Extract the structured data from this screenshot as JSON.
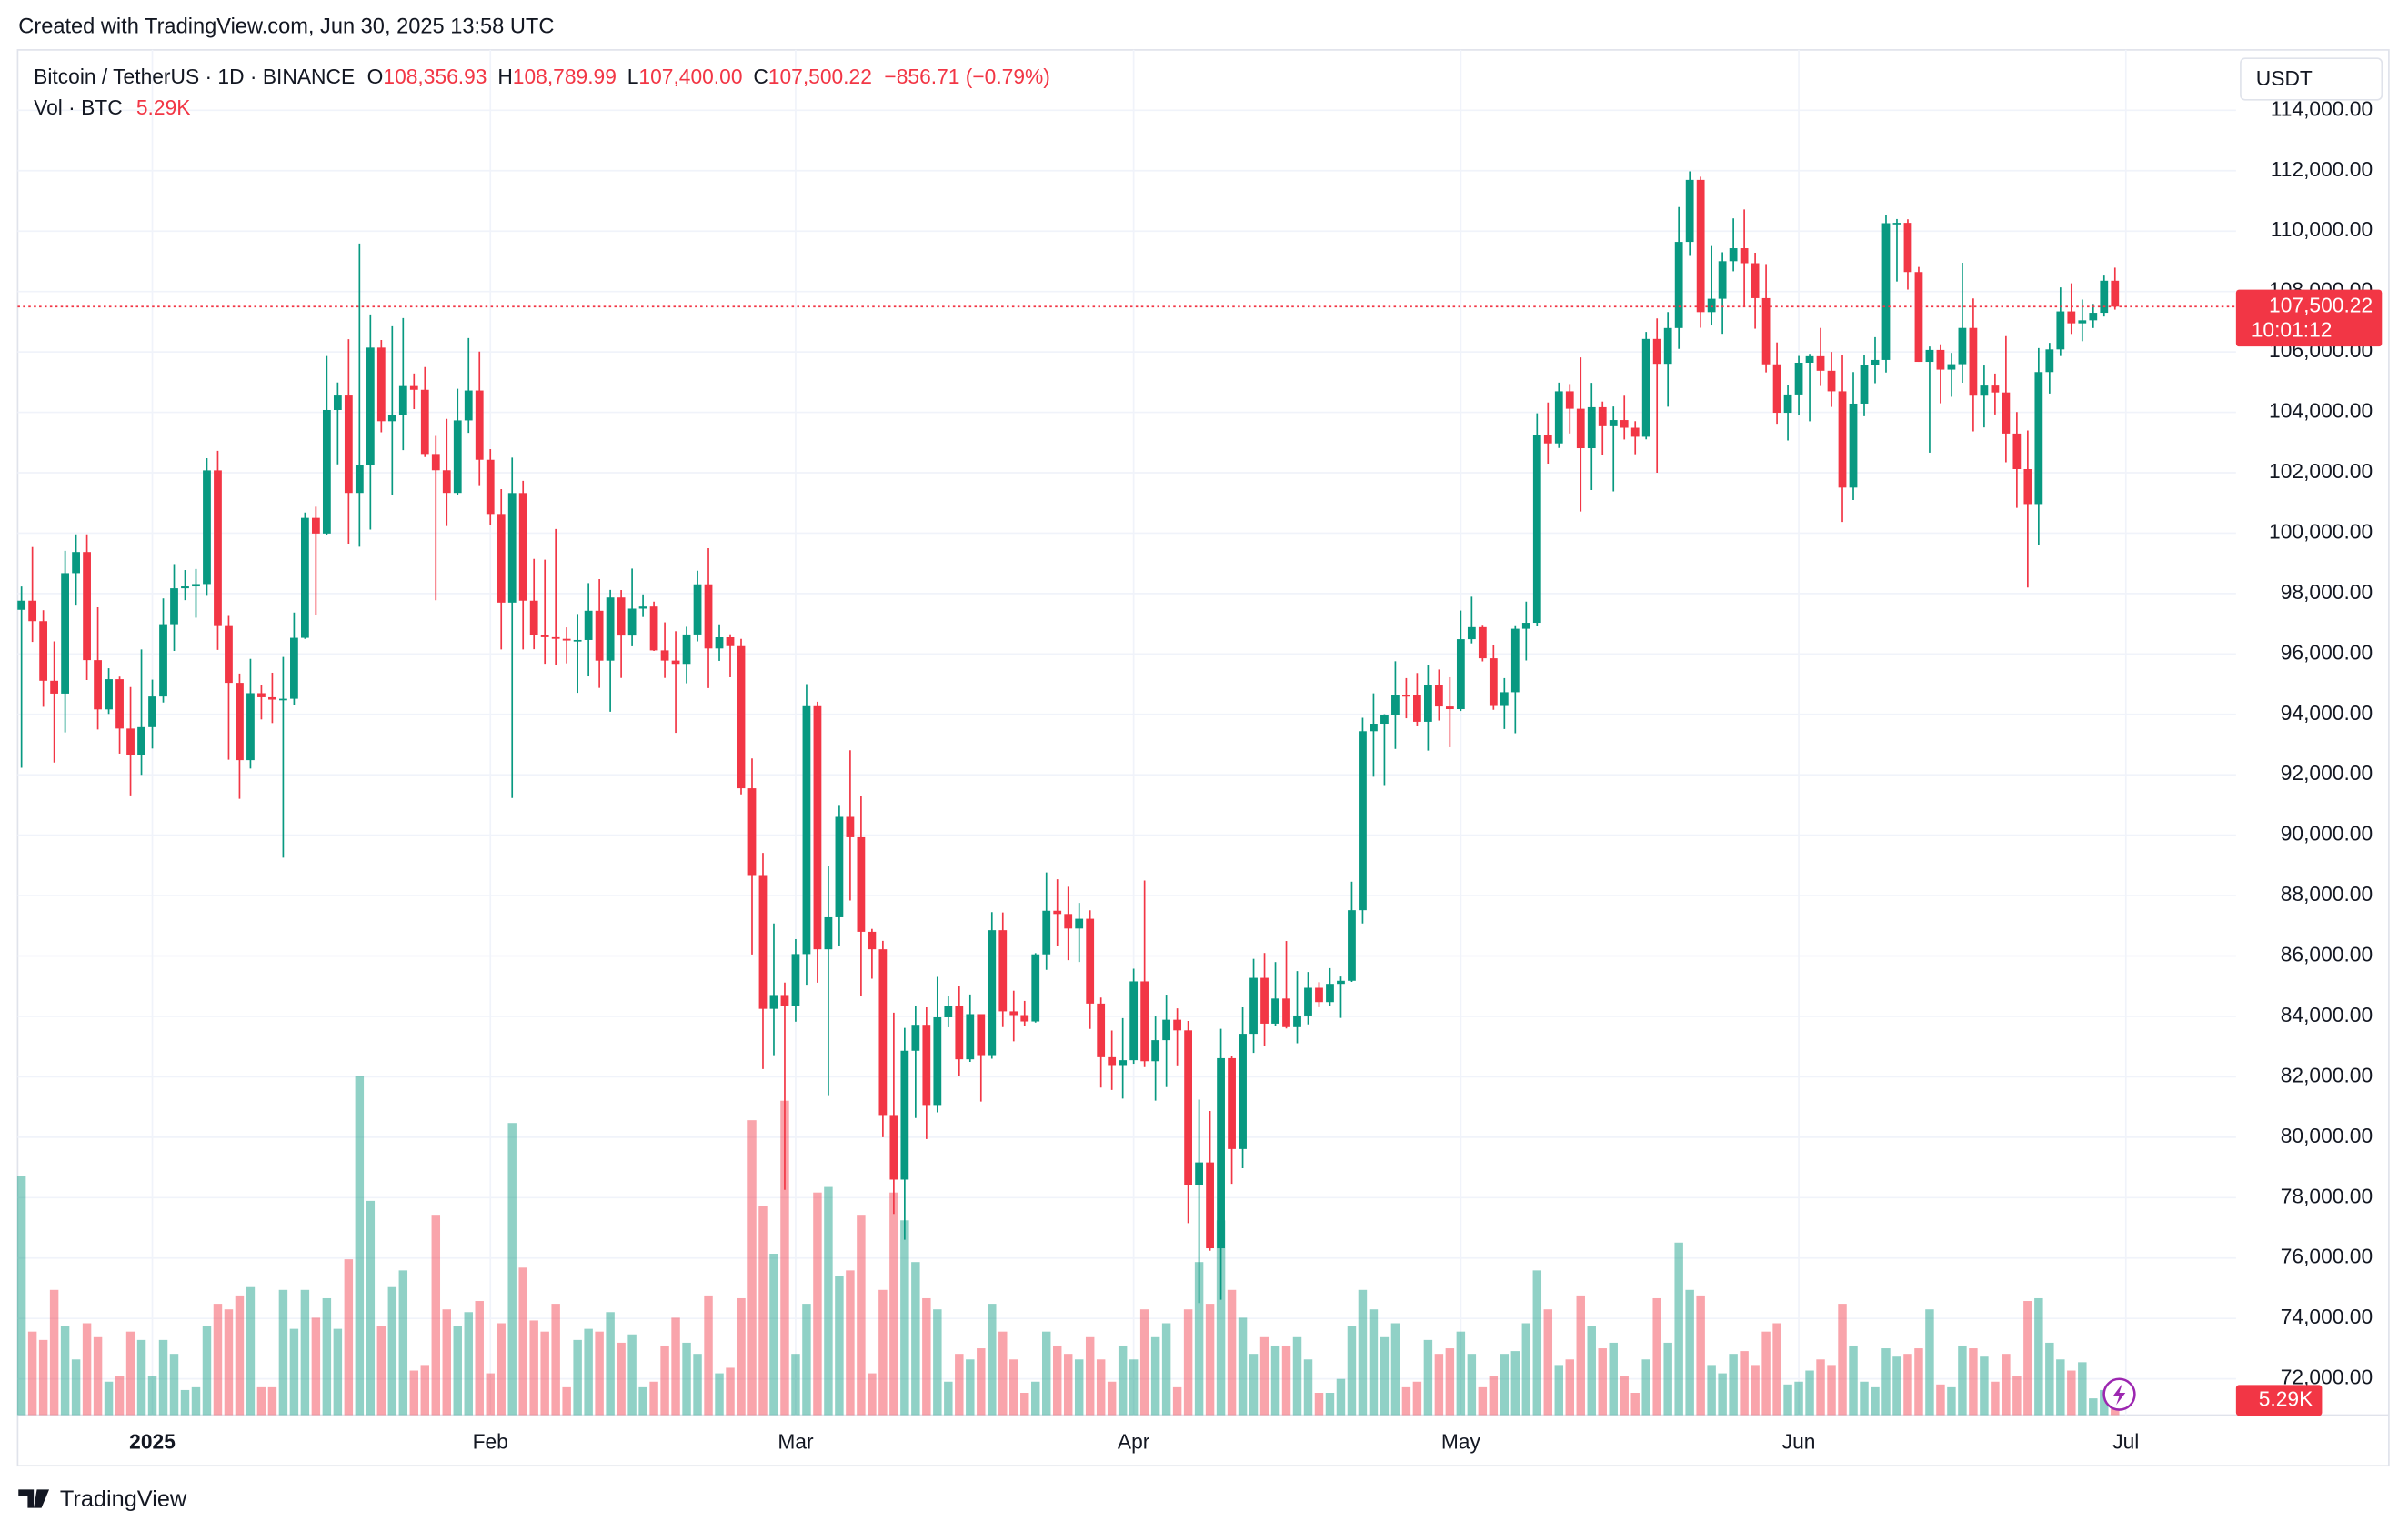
{
  "header": {
    "created": "Created with TradingView.com, Jun 30, 2025 13:58 UTC"
  },
  "chart_data": {
    "type": "candlestick",
    "title": "Bitcoin / TetherUS · 1D · BINANCE",
    "legend": {
      "open_label": "O",
      "open": "108,356.93",
      "high_label": "H",
      "high": "108,789.99",
      "low_label": "L",
      "low": "107,400.00",
      "close_label": "C",
      "close": "107,500.22",
      "change": "−856.71 (−0.79%)"
    },
    "categories": [
      null,
      null,
      null,
      null,
      null,
      null,
      null,
      null,
      null,
      null,
      null,
      null,
      "2025",
      null,
      null,
      null,
      null,
      null,
      null,
      null,
      null,
      null,
      null,
      null,
      null,
      null,
      null,
      null,
      null,
      null,
      null,
      null,
      null,
      null,
      null,
      null,
      null,
      null,
      null,
      null,
      null,
      null,
      null,
      "Feb",
      null,
      null,
      null,
      null,
      null,
      null,
      null,
      null,
      null,
      null,
      null,
      null,
      null,
      null,
      null,
      null,
      null,
      null,
      null,
      null,
      null,
      null,
      null,
      null,
      null,
      null,
      null,
      "Mar",
      null,
      null,
      null,
      null,
      null,
      null,
      null,
      null,
      null,
      null,
      null,
      null,
      null,
      null,
      null,
      null,
      null,
      null,
      null,
      null,
      null,
      null,
      null,
      null,
      null,
      null,
      null,
      null,
      null,
      null,
      "Apr",
      null,
      null,
      null,
      null,
      null,
      null,
      null,
      null,
      null,
      null,
      null,
      null,
      null,
      null,
      null,
      null,
      null,
      null,
      null,
      null,
      null,
      null,
      null,
      null,
      null,
      null,
      null,
      null,
      null,
      "May",
      null,
      null,
      null,
      null,
      null,
      null,
      null,
      null,
      null,
      null,
      null,
      null,
      null,
      null,
      null,
      null,
      null,
      null,
      null,
      null,
      null,
      null,
      null,
      null,
      null,
      null,
      null,
      null,
      null,
      null,
      "Jun",
      null,
      null,
      null,
      null,
      null,
      null,
      null,
      null,
      null,
      null,
      null,
      null,
      null,
      null,
      null,
      null,
      null,
      null,
      null,
      null,
      null,
      null,
      null,
      null,
      null,
      null,
      null,
      null,
      null,
      "Jul"
    ],
    "open": [
      97461,
      97763,
      97086,
      95112,
      94687,
      98676,
      99375,
      95795,
      94164,
      95164,
      93530,
      92643,
      93576,
      94591,
      96985,
      98174,
      98236,
      98314,
      102078,
      96923,
      95043,
      92484,
      94701,
      94566,
      94488,
      94516,
      96534,
      100505,
      99987,
      104077,
      104556,
      101331,
      102260,
      106143,
      103706,
      103910,
      104870,
      104746,
      102621,
      102082,
      101332,
      103733,
      104722,
      102429,
      100635,
      97700,
      101328,
      97763,
      96612,
      96554,
      96500,
      96444,
      96462,
      97430,
      95778,
      97869,
      96608,
      97500,
      97569,
      96118,
      95780,
      95671,
      96644,
      98305,
      96181,
      96551,
      96258,
      91552,
      88680,
      84250,
      84708,
      84349,
      86064,
      94270,
      86221,
      87281,
      90606,
      89931,
      86801,
      86222,
      80735,
      78596,
      82862,
      83722,
      81067,
      83969,
      84343,
      82579,
      84075,
      82718,
      86854,
      84167,
      84043,
      83832,
      86054,
      87498,
      87391,
      86909,
      87232,
      84424,
      82648,
      82389,
      82550,
      85159,
      82516,
      83213,
      83889,
      83538,
      78430,
      79164,
      76322,
      82616,
      79608,
      83424,
      85276,
      83760,
      84591,
      83643,
      84030,
      84947,
      84474,
      85077,
      85179,
      87516,
      93442,
      93691,
      93980,
      94638,
      94631,
      93754,
      94982,
      94261,
      94173,
      96489,
      96887,
      95856,
      94277,
      94733,
      96834,
      97032,
      103241,
      102971,
      104696,
      104118,
      102812,
      104169,
      103539,
      103744,
      103489,
      103191,
      106430,
      105606,
      106791,
      109643,
      111696,
      107318,
      107761,
      109004,
      109434,
      108938,
      107781,
      105589,
      103985,
      104591,
      105642,
      105857,
      105376,
      104696,
      101508,
      104288,
      105552,
      105734,
      110263,
      110274,
      108645,
      105671,
      106066,
      105414,
      105594,
      106794,
      104551,
      104886,
      104658,
      103297,
      102120,
      100963,
      105333,
      106084,
      107341,
      106947,
      107047,
      107296,
      108356.93,
      null
    ],
    "high": [
      98233,
      99540,
      97448,
      96416,
      99416,
      99960,
      99960,
      97544,
      95525,
      95250,
      94903,
      96150,
      95149,
      97839,
      98976,
      98778,
      98813,
      102482,
      102724,
      97258,
      95350,
      95837,
      94980,
      95378,
      95900,
      97371,
      100681,
      100875,
      105865,
      104988,
      106422,
      109588,
      107240,
      106394,
      106850,
      107120,
      105286,
      105500,
      103220,
      103783,
      104782,
      106457,
      106012,
      102783,
      101456,
      102500,
      101732,
      99149,
      99120,
      100137,
      96880,
      97323,
      98345,
      98478,
      98119,
      98116,
      98826,
      97972,
      97732,
      97046,
      96753,
      96899,
      98756,
      99500,
      96980,
      96650,
      96500,
      92540,
      89414,
      87078,
      85120,
      86558,
      95000,
      94416,
      88967,
      91000,
      92810,
      91283,
      86897,
      86500,
      84123,
      83617,
      84358,
      84300,
      85309,
      84672,
      85000,
      84725,
      84075,
      87453,
      87443,
      84850,
      84513,
      86094,
      88765,
      88542,
      88292,
      87756,
      87515,
      84624,
      83534,
      83943,
      85579,
      88500,
      83998,
      84720,
      84266,
      83850,
      81243,
      80867,
      83588,
      82700,
      84300,
      85905,
      86100,
      85799,
      86496,
      85500,
      85470,
      85132,
      85597,
      85320,
      88460,
      93888,
      94696,
      94005,
      95758,
      95199,
      95369,
      95630,
      95485,
      95228,
      97437,
      97895,
      96935,
      96304,
      95199,
      96920,
      97732,
      103969,
      104324,
      104984,
      104937,
      105819,
      104976,
      104356,
      104192,
      104550,
      103707,
      106660,
      107108,
      107320,
      110797,
      111980,
      111800,
      109506,
      109300,
      110422,
      110718,
      109284,
      108910,
      106313,
      104900,
      105867,
      105935,
      106794,
      106000,
      105909,
      105333,
      105900,
      106488,
      110530,
      110400,
      110392,
      108813,
      106179,
      106252,
      105968,
      108952,
      107771,
      105550,
      105284,
      106524,
      104010,
      103400,
      106128,
      106300,
      108135,
      108272,
      107735,
      107587,
      108528,
      108789.99,
      null
    ],
    "low": [
      92232,
      96398,
      94250,
      92403,
      93400,
      97600,
      95137,
      93500,
      94014,
      92700,
      91317,
      92000,
      92869,
      94392,
      96100,
      97781,
      97200,
      97926,
      96132,
      92500,
      91203,
      92206,
      93832,
      93712,
      89256,
      94322,
      96500,
      97300,
      99950,
      102277,
      99651,
      99550,
      100119,
      103339,
      101262,
      102750,
      104106,
      102520,
      97777,
      100233,
      101256,
      103320,
      101560,
      100279,
      96150,
      91231,
      96150,
      96155,
      95676,
      95620,
      95688,
      94713,
      95256,
      94876,
      94088,
      95205,
      96253,
      97223,
      96101,
      95205,
      93388,
      95029,
      96415,
      94871,
      95770,
      95227,
      91350,
      86050,
      82256,
      82716,
      78258,
      83824,
      85050,
      85117,
      81390,
      86334,
      87836,
      84667,
      85248,
      80000,
      77459,
      76606,
      80635,
      79939,
      80824,
      83639,
      82017,
      82492,
      81180,
      82600,
      83647,
      83175,
      83674,
      83795,
      85541,
      86346,
      85860,
      85800,
      83585,
      81644,
      81565,
      81279,
      82432,
      82320,
      81211,
      81659,
      82379,
      77153,
      74508,
      76239,
      74620,
      78456,
      78972,
      82792,
      83034,
      83678,
      83600,
      83111,
      83736,
      84303,
      84353,
      83950,
      85143,
      87076,
      91935,
      91660,
      92855,
      93870,
      93602,
      92800,
      93795,
      92910,
      94111,
      96350,
      95753,
      94151,
      93514,
      93377,
      95784,
      96913,
      102300,
      102818,
      103300,
      100718,
      101429,
      102602,
      101383,
      103100,
      102612,
      103105,
      102000,
      104184,
      106100,
      109177,
      106800,
      106875,
      106600,
      108670,
      107516,
      106769,
      105322,
      103621,
      103068,
      103910,
      103703,
      104872,
      104179,
      100372,
      101095,
      103871,
      104964,
      105318,
      108331,
      108064,
      105671,
      102664,
      104300,
      104514,
      104980,
      103371,
      103500,
      103929,
      102345,
      100837,
      98200,
      99613,
      104622,
      105862,
      106595,
      106355,
      106791,
      107172,
      107400,
      null
    ],
    "close": [
      97763,
      97086,
      95112,
      94687,
      98676,
      99375,
      95795,
      94164,
      95164,
      93530,
      92643,
      93576,
      94591,
      96985,
      98174,
      98236,
      98314,
      102078,
      96923,
      95043,
      92484,
      94701,
      94566,
      94488,
      94516,
      96534,
      100505,
      99987,
      104077,
      104556,
      101331,
      102260,
      106143,
      103706,
      103910,
      104870,
      104746,
      102621,
      102082,
      101332,
      103733,
      104722,
      102429,
      100635,
      97700,
      101328,
      97763,
      96612,
      96554,
      96500,
      96444,
      96462,
      97430,
      95778,
      97869,
      96608,
      97500,
      97569,
      96118,
      95780,
      95671,
      96644,
      98305,
      96181,
      96551,
      96258,
      91552,
      88680,
      84250,
      84708,
      84349,
      86064,
      94270,
      86221,
      87281,
      90606,
      89931,
      86801,
      86222,
      80735,
      78596,
      82862,
      83722,
      81067,
      83969,
      84343,
      82579,
      84075,
      82718,
      86854,
      84167,
      84043,
      83832,
      86054,
      87498,
      87391,
      86909,
      87232,
      84424,
      82648,
      82389,
      82550,
      85159,
      82516,
      83213,
      83889,
      83538,
      78430,
      79164,
      76322,
      82616,
      79608,
      83424,
      85276,
      83760,
      84591,
      83644,
      84030,
      84947,
      84474,
      85077,
      85179,
      87516,
      93442,
      93691,
      93980,
      94638,
      94631,
      93754,
      94982,
      94261,
      94173,
      96489,
      96887,
      95856,
      94277,
      94733,
      96834,
      97032,
      103241,
      102971,
      104696,
      104118,
      102812,
      104169,
      103539,
      103744,
      103489,
      103191,
      106430,
      105606,
      106791,
      109643,
      111696,
      107318,
      107761,
      109004,
      109434,
      108938,
      107781,
      105589,
      103985,
      104591,
      105642,
      105857,
      105376,
      104696,
      101508,
      104288,
      105552,
      105734,
      110263,
      110274,
      108645,
      105671,
      106066,
      105414,
      105594,
      106794,
      104551,
      104886,
      104658,
      103297,
      102120,
      100963,
      105333,
      106084,
      107341,
      106947,
      107047,
      107296,
      108357,
      107500.22,
      null
    ],
    "volume": {
      "name": "Vol · BTC",
      "last_label": "5.29K",
      "values": [
        86000,
        30000,
        27000,
        45000,
        32000,
        20000,
        33000,
        28000,
        12000,
        14000,
        30000,
        27000,
        14000,
        27000,
        22000,
        9000,
        10000,
        32000,
        40000,
        38000,
        43000,
        46000,
        10000,
        10000,
        45000,
        31000,
        45000,
        35000,
        42000,
        31000,
        56000,
        122000,
        77000,
        32000,
        46000,
        52000,
        16000,
        18000,
        72000,
        38000,
        32000,
        37000,
        41000,
        15000,
        33000,
        105000,
        53000,
        34000,
        30000,
        40000,
        10000,
        27000,
        31000,
        30000,
        37000,
        26000,
        29000,
        10000,
        12000,
        25000,
        35000,
        26000,
        22000,
        43000,
        15000,
        17000,
        42000,
        106000,
        75000,
        58000,
        113000,
        22000,
        40000,
        80000,
        82000,
        50000,
        52000,
        72000,
        15000,
        45000,
        80000,
        70000,
        55000,
        42000,
        38000,
        12000,
        22000,
        20000,
        24000,
        40000,
        30000,
        20000,
        8000,
        12000,
        30000,
        25000,
        22000,
        20000,
        28000,
        20000,
        12000,
        25000,
        20000,
        38000,
        28000,
        33000,
        10000,
        38000,
        55000,
        40000,
        70000,
        45000,
        35000,
        22000,
        28000,
        25000,
        25000,
        28000,
        20000,
        8000,
        8000,
        13000,
        32000,
        45000,
        38000,
        28000,
        33000,
        10000,
        12000,
        27000,
        22000,
        24000,
        30000,
        22000,
        10000,
        14000,
        22000,
        23000,
        33000,
        52000,
        38000,
        18000,
        20000,
        43000,
        32000,
        24000,
        26000,
        14000,
        8000,
        20000,
        42000,
        26000,
        62000,
        45000,
        43000,
        18000,
        15000,
        22000,
        23000,
        18000,
        30000,
        33000,
        11000,
        12000,
        16000,
        20000,
        18000,
        40000,
        25000,
        12000,
        10000,
        24000,
        21000,
        22000,
        24000,
        38000,
        11000,
        10000,
        25000,
        24000,
        21000,
        12000,
        22000,
        14000,
        41000,
        42000,
        26000,
        20000,
        16000,
        19000,
        6000,
        9000,
        5290,
        null
      ]
    },
    "ylim": [
      70800,
      116000
    ],
    "yticks": [
      {
        "value": 72000,
        "label": "72,000.00"
      },
      {
        "value": 74000,
        "label": "74,000.00"
      },
      {
        "value": 76000,
        "label": "76,000.00"
      },
      {
        "value": 78000,
        "label": "78,000.00"
      },
      {
        "value": 80000,
        "label": "80,000.00"
      },
      {
        "value": 82000,
        "label": "82,000.00"
      },
      {
        "value": 84000,
        "label": "84,000.00"
      },
      {
        "value": 86000,
        "label": "86,000.00"
      },
      {
        "value": 88000,
        "label": "88,000.00"
      },
      {
        "value": 90000,
        "label": "90,000.00"
      },
      {
        "value": 92000,
        "label": "92,000.00"
      },
      {
        "value": 94000,
        "label": "94,000.00"
      },
      {
        "value": 96000,
        "label": "96,000.00"
      },
      {
        "value": 98000,
        "label": "98,000.00"
      },
      {
        "value": 100000,
        "label": "100,000.00"
      },
      {
        "value": 102000,
        "label": "102,000.00"
      },
      {
        "value": 104000,
        "label": "104,000.00"
      },
      {
        "value": 106000,
        "label": "106,000.00"
      },
      {
        "value": 108000,
        "label": "108,000.00"
      },
      {
        "value": 110000,
        "label": "110,000.00"
      },
      {
        "value": 112000,
        "label": "112,000.00"
      },
      {
        "value": 114000,
        "label": "114,000.00"
      }
    ],
    "y_unit": "USDT",
    "price_tag": {
      "price": "107,500.22",
      "countdown": "10:01:12"
    },
    "up_color": "#089981",
    "down_color": "#f23645",
    "grid": true
  },
  "footer": {
    "brand": "TradingView"
  }
}
